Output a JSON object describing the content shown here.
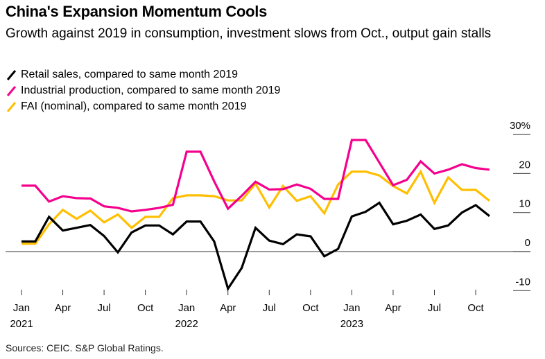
{
  "header": {
    "title": "China's Expansion Momentum Cools",
    "subtitle": "Growth against 2019 in consumption, investment slows from Oct., output gain stalls"
  },
  "legend": [
    {
      "label": "Retail sales, compared to same month 2019",
      "color": "#000000"
    },
    {
      "label": "Industrial production, compared to same month 2019",
      "color": "#f5008c"
    },
    {
      "label": "FAI (nominal), compared to same month 2019",
      "color": "#ffbf00"
    }
  ],
  "footer": {
    "source": "Sources: CEIC. S&P Global Ratings."
  },
  "chart_data": {
    "type": "line",
    "title": "China's Expansion Momentum Cools",
    "subtitle": "Growth against 2019 in consumption, investment slows from Oct., output gain stalls",
    "xlabel": "",
    "ylabel": "",
    "x_start": "2021-01",
    "x_end": "2023-11",
    "x_ticks": [
      {
        "month_index": 0,
        "label": "Jan",
        "year": "2021"
      },
      {
        "month_index": 3,
        "label": "Apr",
        "year": ""
      },
      {
        "month_index": 6,
        "label": "Jul",
        "year": ""
      },
      {
        "month_index": 9,
        "label": "Oct",
        "year": ""
      },
      {
        "month_index": 12,
        "label": "Jan",
        "year": "2022"
      },
      {
        "month_index": 15,
        "label": "Apr",
        "year": ""
      },
      {
        "month_index": 18,
        "label": "Jul",
        "year": ""
      },
      {
        "month_index": 21,
        "label": "Oct",
        "year": ""
      },
      {
        "month_index": 24,
        "label": "Jan",
        "year": "2023"
      },
      {
        "month_index": 27,
        "label": "Apr",
        "year": ""
      },
      {
        "month_index": 30,
        "label": "Jul",
        "year": ""
      },
      {
        "month_index": 33,
        "label": "Oct",
        "year": ""
      }
    ],
    "y_ticks": [
      {
        "value": 30,
        "label": "30%"
      },
      {
        "value": 20,
        "label": "20"
      },
      {
        "value": 10,
        "label": "10"
      },
      {
        "value": 0,
        "label": "0"
      },
      {
        "value": -10,
        "label": "-10"
      }
    ],
    "ylim": [
      -10,
      30
    ],
    "y_position": "right",
    "grid": false,
    "zero_line": true,
    "legend_position": "top-left",
    "series": [
      {
        "name": "Retail sales, compared to same month 2019",
        "color": "#000000",
        "values": [
          2.6,
          2.6,
          8.9,
          5.4,
          6.1,
          6.8,
          4.0,
          -0.2,
          4.9,
          6.7,
          6.7,
          4.4,
          7.7,
          7.7,
          2.6,
          -9.5,
          -4.2,
          6.1,
          2.8,
          1.9,
          4.4,
          3.9,
          -1.2,
          0.7,
          9.0,
          10.2,
          12.5,
          7.0,
          7.9,
          9.5,
          5.8,
          6.7,
          10.0,
          11.9,
          9.1
        ]
      },
      {
        "name": "Industrial production, compared to same month 2019",
        "color": "#f5008c",
        "values": [
          16.9,
          16.9,
          12.8,
          14.2,
          13.7,
          13.6,
          11.6,
          11.2,
          10.3,
          10.7,
          11.2,
          12.0,
          25.6,
          25.6,
          18.0,
          11.0,
          14.3,
          17.9,
          15.9,
          16.0,
          17.2,
          16.1,
          13.5,
          13.5,
          28.6,
          28.6,
          22.8,
          17.0,
          18.4,
          23.1,
          20.0,
          21.0,
          22.4,
          21.4,
          21.0
        ]
      },
      {
        "name": "FAI (nominal), compared to same month 2019",
        "color": "#ffbf00",
        "values": [
          2.0,
          2.0,
          7.0,
          10.7,
          8.4,
          10.5,
          7.5,
          9.5,
          6.1,
          8.9,
          8.9,
          13.7,
          14.4,
          14.4,
          14.2,
          13.1,
          13.1,
          17.4,
          11.3,
          16.8,
          13.0,
          14.2,
          9.8,
          17.2,
          20.5,
          20.5,
          19.5,
          16.8,
          14.9,
          20.5,
          12.5,
          19.0,
          15.8,
          15.8,
          13.0
        ]
      }
    ]
  }
}
